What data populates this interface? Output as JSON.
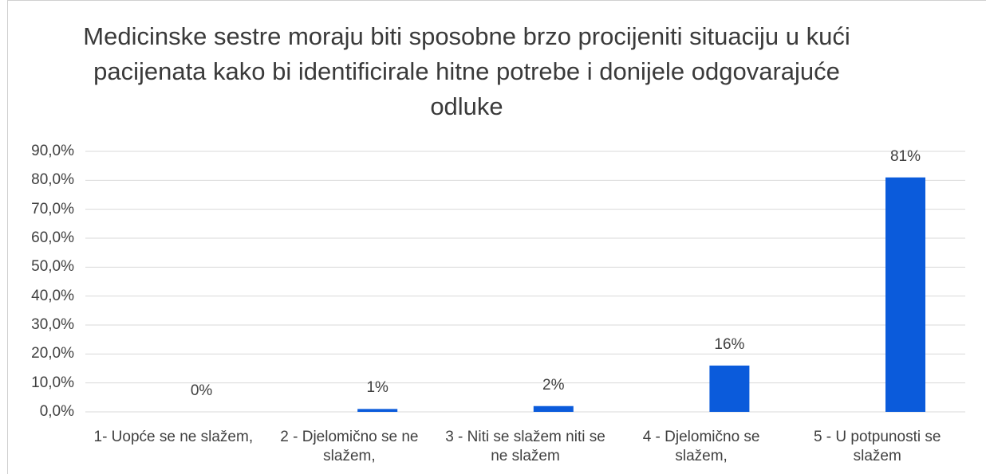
{
  "chart_data": {
    "type": "bar",
    "title": "Medicinske sestre moraju biti sposobne brzo procijeniti situaciju u kući pacijenata kako bi identificirale hitne potrebe i donijele odgovarajuće odluke",
    "categories": [
      "1-  Uopće se ne slažem,",
      "2 - Djelomično se ne slažem,",
      "3 - Niti se slažem niti se ne slažem",
      "4 - Djelomično se slažem,",
      "5 - U potpunosti se slažem"
    ],
    "values": [
      0,
      1,
      2,
      16,
      81
    ],
    "value_labels": [
      "0%",
      "1%",
      "2%",
      "16%",
      "81%"
    ],
    "color": "#0b5bdb",
    "ylim": [
      0,
      90
    ],
    "yticks": [
      {
        "value": 0,
        "label": "0,0%"
      },
      {
        "value": 10,
        "label": "10,0%"
      },
      {
        "value": 20,
        "label": "20,0%"
      },
      {
        "value": 30,
        "label": "30,0%"
      },
      {
        "value": 40,
        "label": "40,0%"
      },
      {
        "value": 50,
        "label": "50,0%"
      },
      {
        "value": 60,
        "label": "60,0%"
      },
      {
        "value": 70,
        "label": "70,0%"
      },
      {
        "value": 80,
        "label": "80,0%"
      },
      {
        "value": 90,
        "label": "90,0%"
      }
    ],
    "grid": true
  }
}
